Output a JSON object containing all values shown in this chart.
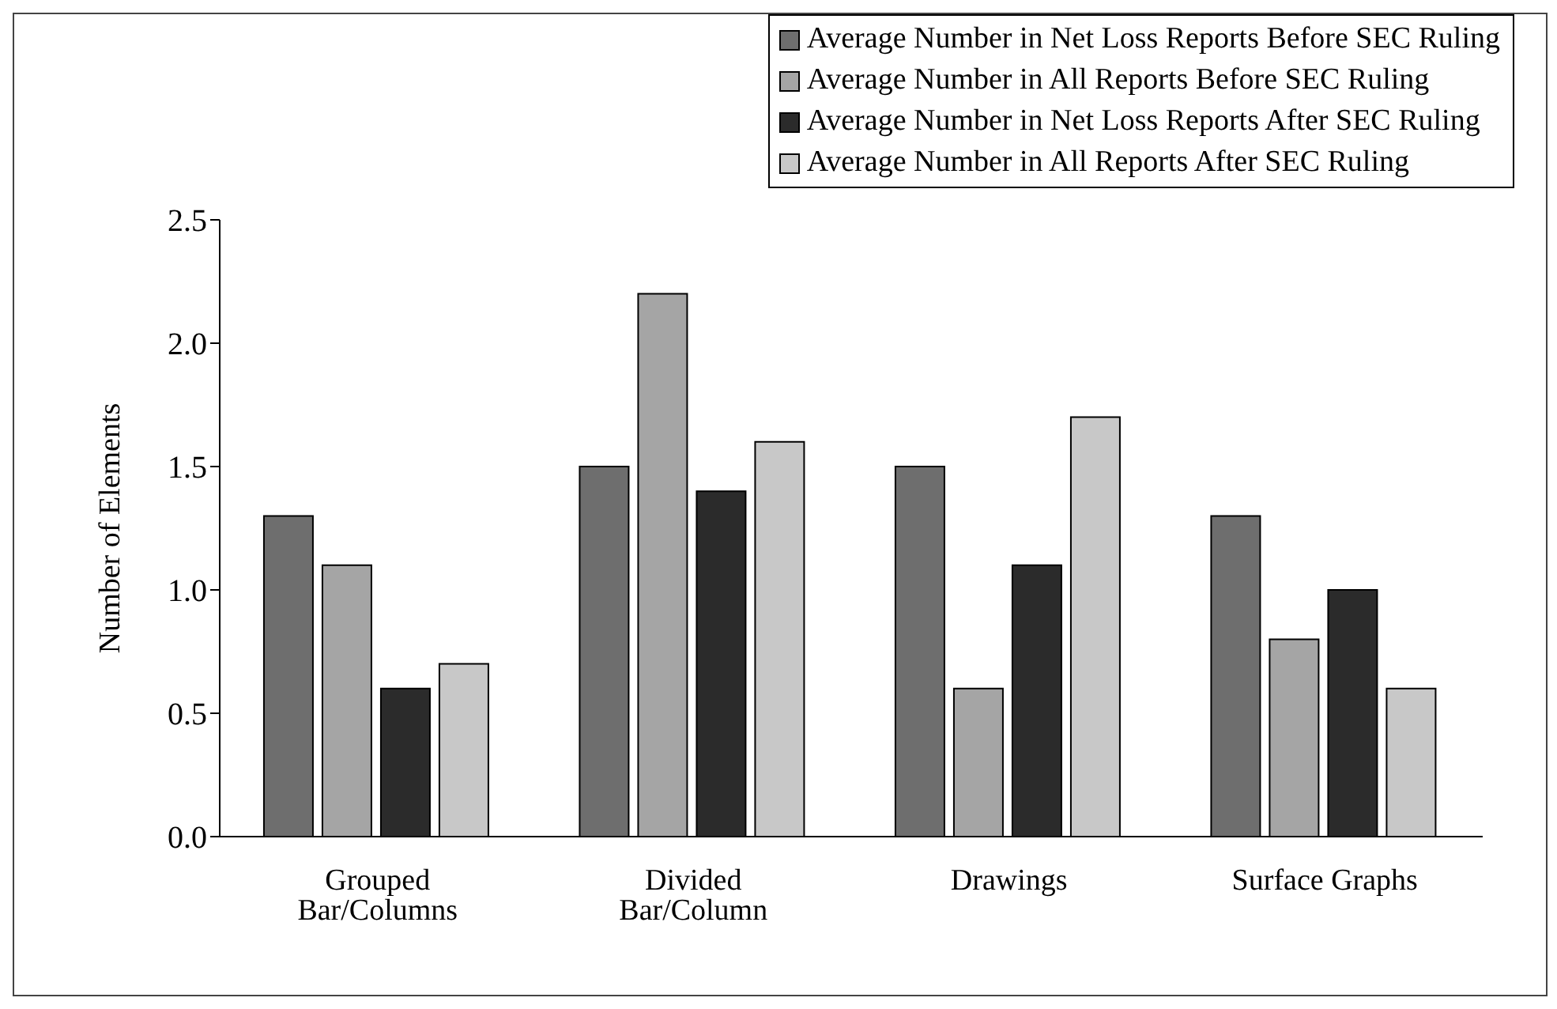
{
  "chart_data": {
    "type": "bar",
    "ylabel": "Number of Elements",
    "categories": [
      "Grouped Bar/Columns",
      "Divided Bar/Column",
      "Drawings",
      "Surface Graphs"
    ],
    "series": [
      {
        "name": "Average Number in  Net Loss Reports Before SEC Ruling",
        "color": "#6e6e6e",
        "values": [
          1.3,
          1.5,
          1.5,
          1.3
        ]
      },
      {
        "name": "Average Number  in All Reports Before SEC Ruling",
        "color": "#a5a5a5",
        "values": [
          1.1,
          2.2,
          0.6,
          0.8
        ]
      },
      {
        "name": "Average Number in  Net Loss Reports After SEC Ruling",
        "color": "#2b2b2b",
        "values": [
          0.6,
          1.4,
          1.1,
          1.0
        ]
      },
      {
        "name": "Average Number  in All Reports After SEC Ruling",
        "color": "#c8c8c8",
        "values": [
          0.7,
          1.6,
          1.7,
          0.6
        ]
      }
    ],
    "ylim": [
      0,
      2.5
    ],
    "yticks": [
      {
        "value": 0,
        "label": "0.0"
      },
      {
        "value": 0.5,
        "label": "0.5"
      },
      {
        "value": 1,
        "label": "1.0"
      },
      {
        "value": 1.5,
        "label": "1.5"
      },
      {
        "value": 2,
        "label": "2.0"
      },
      {
        "value": 2.5,
        "label": "2.5"
      }
    ],
    "grid": false,
    "legend": "top right"
  }
}
